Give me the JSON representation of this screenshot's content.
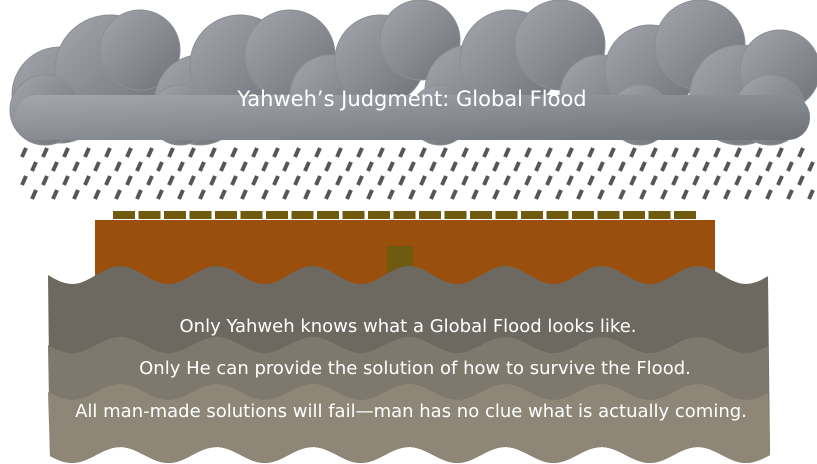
{
  "title": "Yahweh’s Judgment: Global Flood",
  "lines": [
    "Only Yahweh knows what a Global Flood looks like.",
    "Only He can provide the solution of how to survive the Flood.",
    "All man-made solutions will fail—man has no clue what is actually coming."
  ]
}
